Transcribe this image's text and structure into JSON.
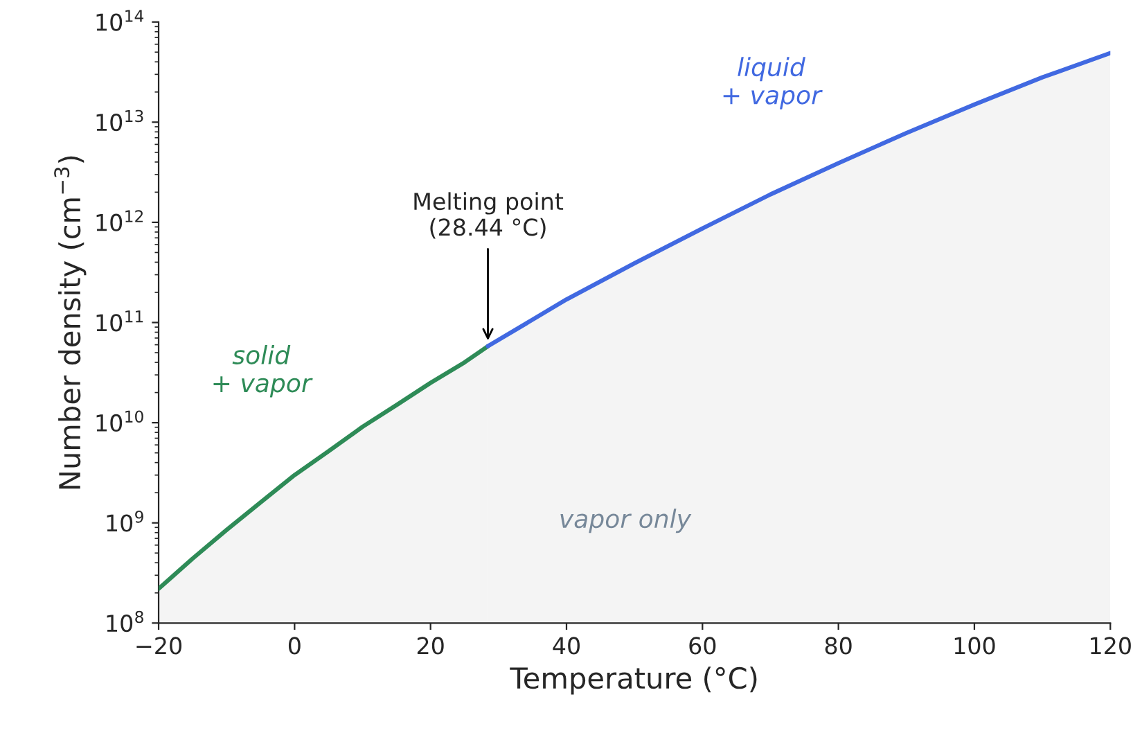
{
  "chart_data": {
    "type": "area",
    "xlabel": "Temperature (°C)",
    "ylabel": "Number density (cm$^{−3}$)",
    "log": "y",
    "grid": false,
    "legend": false,
    "xlim": [
      -20,
      120
    ],
    "xticks": [
      {
        "value": -20,
        "label": "−20"
      },
      0,
      20,
      40,
      60,
      80,
      100,
      120
    ],
    "ylim": [
      100000000.0,
      100000000000000.0
    ],
    "yticks": [
      {
        "value": 100000000.0,
        "label": "10$^{8}$"
      },
      {
        "value": 1000000000.0,
        "label": "10$^{9}$"
      },
      {
        "value": 10000000000.0,
        "label": "10$^{10}$"
      },
      {
        "value": 100000000000.0,
        "label": "10$^{11}$"
      },
      {
        "value": 1000000000000.0,
        "label": "10$^{12}$"
      },
      {
        "value": 10000000000000.0,
        "label": "10$^{13}$"
      },
      {
        "value": 100000000000000.0,
        "label": "10$^{14}$"
      }
    ],
    "series": [
      {
        "name": "solid\n+ vapor",
        "color": "#2e8b57",
        "x": [
          -20,
          -15,
          -10,
          -5,
          0,
          5,
          10,
          15,
          20,
          25,
          28.44
        ],
        "values": [
          220000000.0,
          440000000.0,
          850000000.0,
          1600000000.0,
          3000000000.0,
          5200000000.0,
          9100000000.0,
          15000000000.0,
          25000000000.0,
          40000000000.0,
          58000000000.0
        ]
      },
      {
        "name": "liquid\n+ vapor",
        "color": "#4169e1",
        "x": [
          28.44,
          40,
          50,
          60,
          70,
          80,
          90,
          100,
          110,
          120
        ],
        "values": [
          58000000000.0,
          170000000000.0,
          390000000000.0,
          870000000000.0,
          1900000000000.0,
          3900000000000.0,
          7800000000000.0,
          15000000000000.0,
          28000000000000.0,
          49000000000000.0
        ]
      }
    ],
    "annotations": [
      {
        "text": "Melting point\n(28.44 °C)",
        "x": 28.44,
        "y": 58000000000.0
      },
      "vapor only"
    ]
  }
}
